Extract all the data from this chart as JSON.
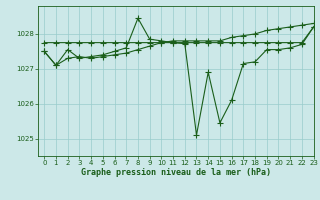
{
  "title": "Graphe pression niveau de la mer (hPa)",
  "bg_color": "#cce8e8",
  "grid_color": "#99cccc",
  "line_color": "#1a5e1a",
  "xlim": [
    -0.5,
    23
  ],
  "ylim": [
    1024.5,
    1028.8
  ],
  "yticks": [
    1025,
    1026,
    1027,
    1028
  ],
  "xticks": [
    0,
    1,
    2,
    3,
    4,
    5,
    6,
    7,
    8,
    9,
    10,
    11,
    12,
    13,
    14,
    15,
    16,
    17,
    18,
    19,
    20,
    21,
    22,
    23
  ],
  "series": [
    [
      1027.5,
      1027.1,
      1027.55,
      1027.3,
      1027.35,
      1027.4,
      1027.5,
      1027.6,
      1028.45,
      1027.85,
      1027.8,
      1027.75,
      1027.72,
      1025.1,
      1026.9,
      1025.45,
      1026.1,
      1027.15,
      1027.2,
      1027.55,
      1027.55,
      1027.6,
      1027.7,
      1028.2
    ],
    [
      1027.75,
      1027.75,
      1027.75,
      1027.75,
      1027.75,
      1027.75,
      1027.75,
      1027.75,
      1027.75,
      1027.75,
      1027.75,
      1027.75,
      1027.75,
      1027.75,
      1027.75,
      1027.75,
      1027.75,
      1027.75,
      1027.75,
      1027.75,
      1027.75,
      1027.75,
      1027.75,
      1028.2
    ],
    [
      1027.5,
      1027.1,
      1027.3,
      1027.35,
      1027.3,
      1027.35,
      1027.4,
      1027.45,
      1027.55,
      1027.65,
      1027.75,
      1027.8,
      1027.8,
      1027.8,
      1027.8,
      1027.8,
      1027.9,
      1027.95,
      1028.0,
      1028.1,
      1028.15,
      1028.2,
      1028.25,
      1028.3
    ]
  ],
  "title_fontsize": 6,
  "tick_fontsize": 5,
  "marker_size": 2,
  "linewidth": 0.8
}
